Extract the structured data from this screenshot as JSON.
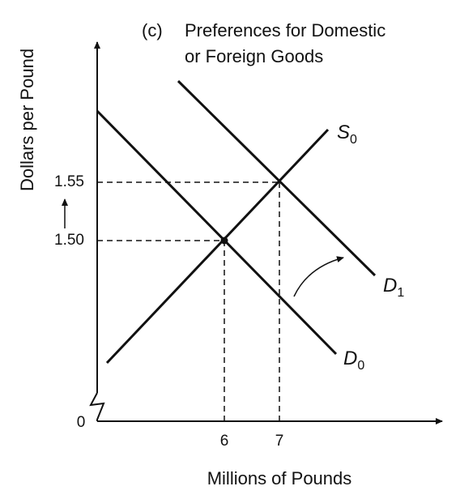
{
  "panel_label": "(c)",
  "title_lines": [
    "Preferences for Domestic",
    "or Foreign Goods"
  ],
  "y_axis_label": "Dollars per Pound",
  "x_axis_label": "Millions of Pounds",
  "origin_label": "0",
  "y_ticks": [
    "1.55",
    "1.50"
  ],
  "x_ticks": [
    "6",
    "7"
  ],
  "curves": [
    {
      "label": "S",
      "subscript": "0"
    },
    {
      "label": "D",
      "subscript": "0"
    },
    {
      "label": "D",
      "subscript": "1"
    }
  ]
}
